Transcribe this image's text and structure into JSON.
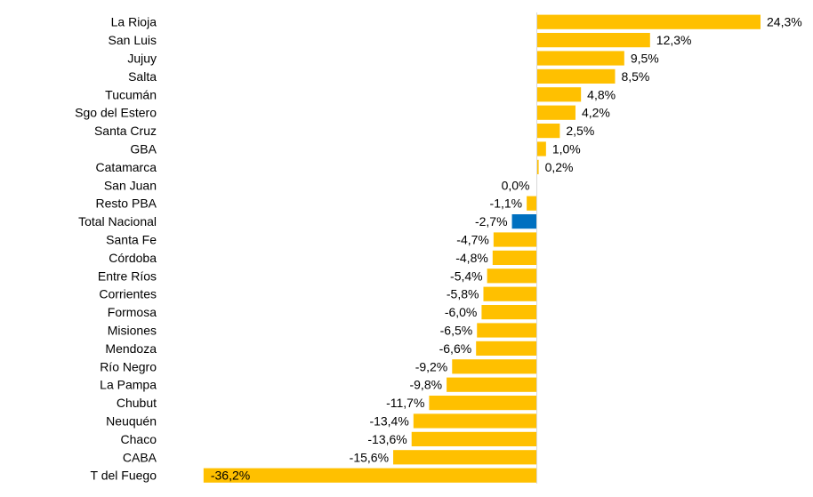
{
  "chart_data": {
    "type": "bar",
    "orientation": "horizontal",
    "title": "",
    "xlabel": "",
    "ylabel": "",
    "xlim": [
      -36.2,
      24.3
    ],
    "grid": false,
    "legend": "none",
    "categories": [
      "La Rioja",
      "San Luis",
      "Jujuy",
      "Salta",
      "Tucumán",
      "Sgo del Estero",
      "Santa Cruz",
      "GBA",
      "Catamarca",
      "San Juan",
      "Resto PBA",
      "Total Nacional",
      "Santa Fe",
      "Córdoba",
      "Entre Ríos",
      "Corrientes",
      "Formosa",
      "Misiones",
      "Mendoza",
      "Río Negro",
      "La Pampa",
      "Chubut",
      "Neuquén",
      "Chaco",
      "CABA",
      "T del Fuego"
    ],
    "values": [
      24.3,
      12.3,
      9.5,
      8.5,
      4.8,
      4.2,
      2.5,
      1.0,
      0.2,
      0.0,
      -1.1,
      -2.7,
      -4.7,
      -4.8,
      -5.4,
      -5.8,
      -6.0,
      -6.5,
      -6.6,
      -9.2,
      -9.8,
      -11.7,
      -13.4,
      -13.6,
      -15.6,
      -36.2
    ],
    "value_labels": [
      "24,3%",
      "12,3%",
      "9,5%",
      "8,5%",
      "4,8%",
      "4,2%",
      "2,5%",
      "1,0%",
      "0,2%",
      "0,0%",
      "-1,1%",
      "-2,7%",
      "-4,7%",
      "-4,8%",
      "-5,4%",
      "-5,8%",
      "-6,0%",
      "-6,5%",
      "-6,6%",
      "-9,2%",
      "-9,8%",
      "-11,7%",
      "-13,4%",
      "-13,6%",
      "-15,6%",
      "-36,2%"
    ],
    "highlight_category": "Total Nacional",
    "colors": {
      "bar": "#ffc000",
      "highlight": "#0070c0",
      "axis": "#d9d9d9"
    }
  }
}
